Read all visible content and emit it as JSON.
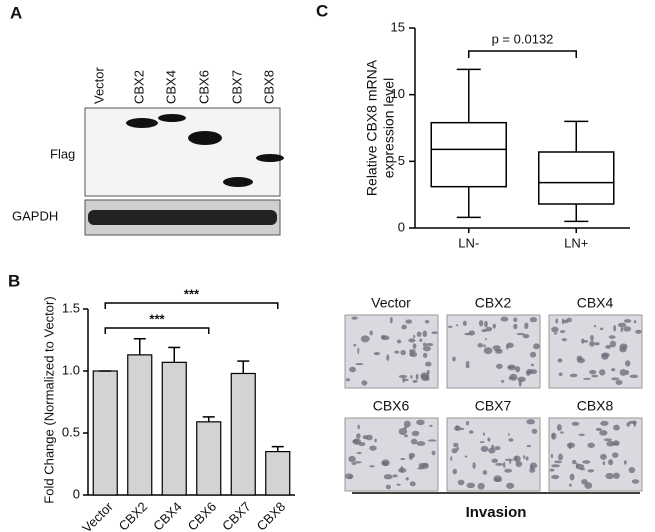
{
  "panels": [
    "A",
    "B",
    "C"
  ],
  "blot": {
    "lanes": [
      "Vector",
      "CBX2",
      "CBX4",
      "CBX6",
      "CBX7",
      "CBX8"
    ],
    "rows": [
      "Flag",
      "GAPDH"
    ]
  },
  "invasion": {
    "labels": [
      "Vector",
      "CBX2",
      "CBX4",
      "CBX6",
      "CBX7",
      "CBX8"
    ],
    "title": "Invasion"
  },
  "chart_data": [
    {
      "type": "box",
      "categories": [
        "LN-",
        "LN+"
      ],
      "boxes": [
        {
          "min": 0.8,
          "q1": 3.1,
          "median": 5.9,
          "q3": 7.9,
          "max": 11.9
        },
        {
          "min": 0.5,
          "q1": 1.8,
          "median": 3.4,
          "q3": 5.7,
          "max": 8.0
        }
      ],
      "ylabel": [
        "Relative CBX8 mRNA",
        "expression level"
      ],
      "annotation": "p = 0.0132",
      "ylim": [
        0,
        15
      ],
      "yticks": [
        0,
        5,
        10,
        15
      ]
    },
    {
      "type": "bar",
      "categories": [
        "Vector",
        "CBX2",
        "CBX4",
        "CBX6",
        "CBX7",
        "CBX8"
      ],
      "values": [
        1.0,
        1.13,
        1.07,
        0.59,
        0.98,
        0.35
      ],
      "errors": [
        0,
        0.13,
        0.12,
        0.04,
        0.1,
        0.04
      ],
      "color": "#d3d3d3",
      "ylabel": "Fold Change (Normalized to Vector)",
      "annotations": [
        "***",
        "***"
      ],
      "ylim": [
        0,
        1.5
      ],
      "yticks": [
        0,
        0.5,
        {
          "value": 1,
          "label": "1.0"
        },
        1.5
      ]
    }
  ]
}
